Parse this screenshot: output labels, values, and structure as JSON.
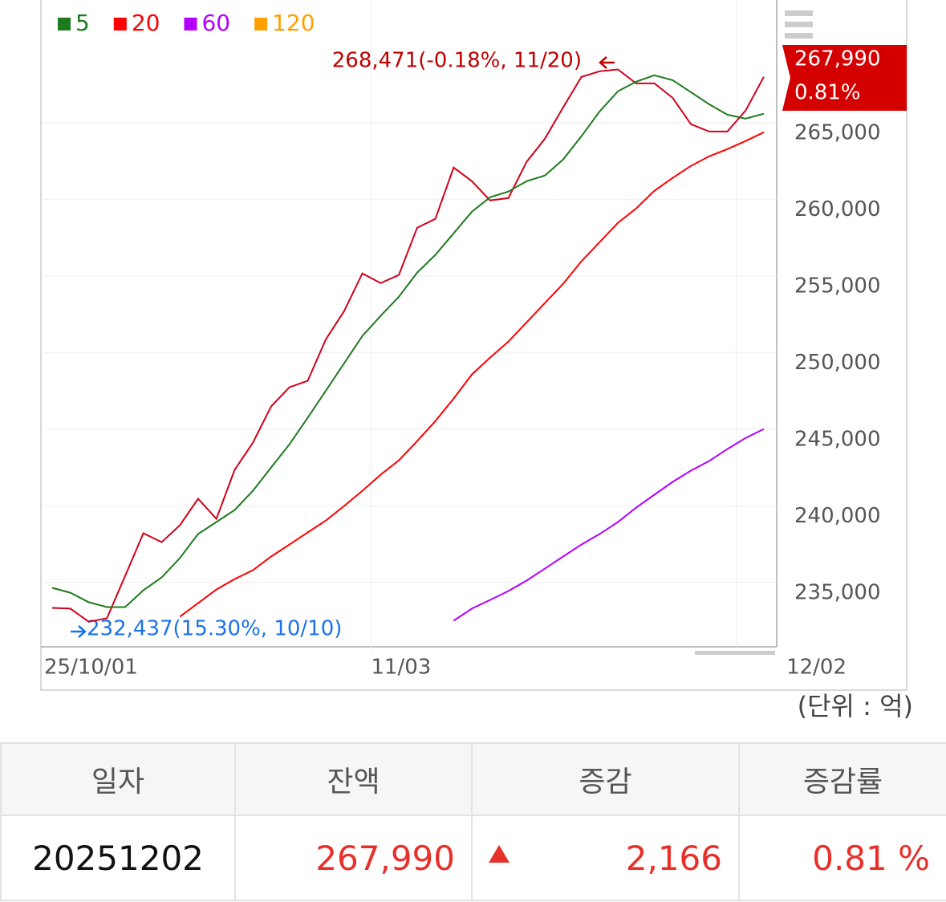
{
  "chart_data": {
    "type": "line",
    "categories": [
      "25/10/01",
      null,
      null,
      null,
      null,
      null,
      null,
      null,
      null,
      null,
      null,
      null,
      null,
      null,
      null,
      null,
      null,
      null,
      "11/03",
      null,
      null,
      null,
      null,
      null,
      null,
      null,
      null,
      null,
      null,
      null,
      null,
      null,
      null,
      null,
      null,
      null,
      null,
      null,
      null,
      "12/02"
    ],
    "series": [
      {
        "color": "#d0021b",
        "values": [
          233340,
          233290,
          232437,
          232660,
          235430,
          238210,
          237630,
          238730,
          240460,
          239150,
          242340,
          244120,
          246480,
          247730,
          248150,
          250870,
          252700,
          255160,
          254530,
          255060,
          258140,
          258720,
          262070,
          261180,
          259920,
          260080,
          262440,
          263950,
          265990,
          267980,
          268350,
          268471,
          267560,
          267560,
          266620,
          264900,
          264420,
          264420,
          265790,
          267990
        ]
      },
      {
        "name": "5",
        "color": "#1e7a1e",
        "values": [
          234650,
          234330,
          233710,
          233390,
          233390,
          234490,
          235330,
          236590,
          238160,
          238940,
          239720,
          240980,
          242500,
          244010,
          245740,
          247520,
          249300,
          251080,
          252390,
          253640,
          255210,
          256370,
          257780,
          259190,
          260130,
          260500,
          261180,
          261550,
          262590,
          264110,
          265730,
          267040,
          267670,
          268090,
          267770,
          266990,
          266200,
          265520,
          265260,
          265580
        ]
      },
      {
        "name": "20",
        "color": "#ff0000",
        "values": [
          null,
          null,
          null,
          null,
          null,
          null,
          null,
          232770,
          233650,
          234540,
          235220,
          235800,
          236690,
          237470,
          238260,
          239040,
          239990,
          240980,
          242030,
          242970,
          244220,
          245530,
          247000,
          248570,
          249670,
          250710,
          251970,
          253230,
          254480,
          255950,
          257200,
          258460,
          259400,
          260550,
          261390,
          262170,
          262800,
          263270,
          263800,
          264370
        ]
      },
      {
        "name": "60",
        "color": "#b300ff",
        "values": [
          null,
          null,
          null,
          null,
          null,
          null,
          null,
          null,
          null,
          null,
          null,
          null,
          null,
          null,
          null,
          null,
          null,
          null,
          null,
          null,
          null,
          null,
          232500,
          233290,
          233860,
          234440,
          235120,
          235900,
          236690,
          237470,
          238160,
          238940,
          239880,
          240720,
          241560,
          242290,
          242920,
          243700,
          244430,
          245010
        ]
      },
      {
        "name": "120",
        "color": "#ff9f00",
        "values": [
          null,
          null,
          null,
          null,
          null,
          null,
          null,
          null,
          null,
          null,
          null,
          null,
          null,
          null,
          null,
          null,
          null,
          null,
          null,
          null,
          null,
          null,
          null,
          null,
          null,
          null,
          null,
          null,
          null,
          null,
          null,
          null,
          null,
          null,
          null,
          null,
          null,
          null,
          null,
          null
        ]
      }
    ],
    "ylim": [
      230800,
      273000
    ],
    "yticks": [
      {
        "value": 235000,
        "label": "235,000"
      },
      {
        "value": 240000,
        "label": "240,000"
      },
      {
        "value": 245000,
        "label": "245,000"
      },
      {
        "value": 250000,
        "label": "250,000"
      },
      {
        "value": 255000,
        "label": "255,000"
      },
      {
        "value": 260000,
        "label": "260,000"
      },
      {
        "value": 265000,
        "label": "265,000"
      }
    ],
    "grid": true,
    "annotations": {
      "max": "268,471(-0.18%, 11/20)",
      "min": "232,437(15.30%, 10/10)"
    },
    "current": {
      "value": "267,990",
      "change": "0.81%"
    },
    "unit": "(단위 : 억)"
  },
  "table": {
    "headers": [
      "일자",
      "잔액",
      "증감",
      "증감률"
    ],
    "rows": [
      [
        "20251202",
        "267,990",
        "2,166",
        "0.81 %"
      ]
    ]
  }
}
